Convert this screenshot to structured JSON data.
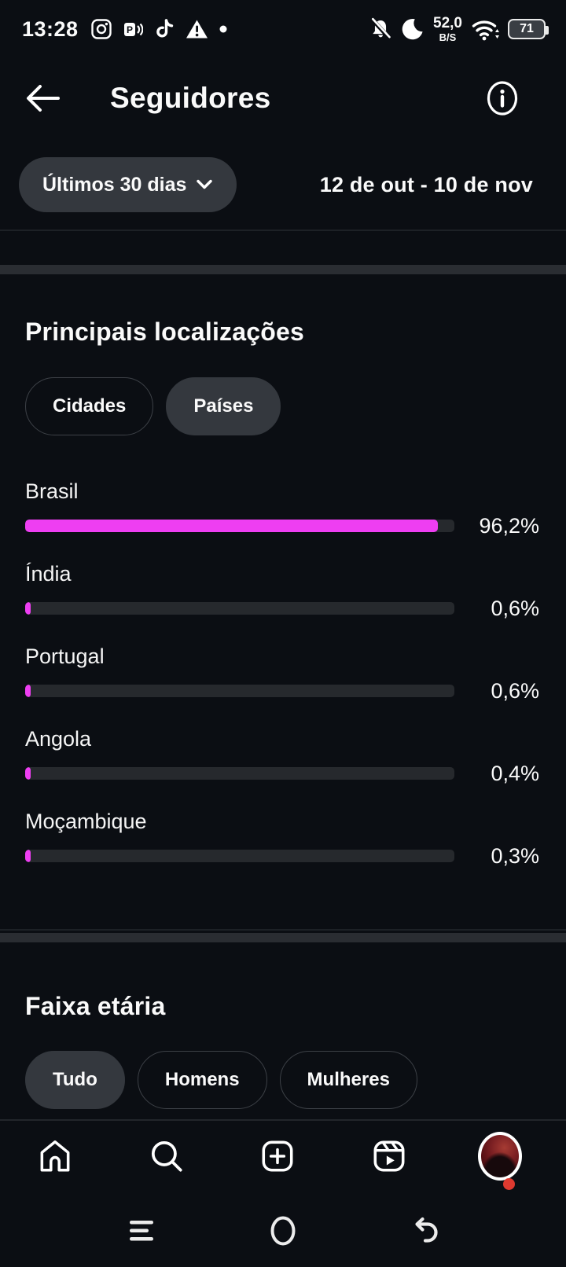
{
  "status_bar": {
    "time": "13:28",
    "left_icons": [
      "instagram",
      "media-p",
      "tiktok",
      "warning",
      "dot"
    ],
    "network_speed_value": "52,0",
    "network_speed_unit": "B/S",
    "battery_percent": "71",
    "right_icons": [
      "notifications-muted",
      "do-not-disturb-moon",
      "network-speed",
      "wifi",
      "battery"
    ]
  },
  "header": {
    "title": "Seguidores",
    "icons": [
      "back-arrow",
      "info"
    ]
  },
  "filter": {
    "period_button": "Últimos 30 dias",
    "date_range": "12 de out - 10 de nov"
  },
  "locations": {
    "title": "Principais localizações",
    "tabs": [
      {
        "label": "Cidades",
        "selected": false
      },
      {
        "label": "Países",
        "selected": true
      }
    ],
    "rows": [
      {
        "country": "Brasil",
        "percent": "96,2%",
        "value": 96.2
      },
      {
        "country": "Índia",
        "percent": "0,6%",
        "value": 0.6
      },
      {
        "country": "Portugal",
        "percent": "0,6%",
        "value": 0.6
      },
      {
        "country": "Angola",
        "percent": "0,4%",
        "value": 0.4
      },
      {
        "country": "Moçambique",
        "percent": "0,3%",
        "value": 0.3
      }
    ]
  },
  "age": {
    "title": "Faixa etária",
    "tabs": [
      {
        "label": "Tudo",
        "selected": true
      },
      {
        "label": "Homens",
        "selected": false
      },
      {
        "label": "Mulheres",
        "selected": false
      }
    ]
  },
  "bottom_nav": [
    "home",
    "search",
    "create",
    "reels",
    "profile"
  ],
  "android_nav": [
    "menu",
    "home",
    "back"
  ],
  "colors": {
    "accent_pink": "#ee3ef2",
    "bar_track": "#26292d",
    "pill_selected": "#34383e",
    "notification_red": "#de3a30",
    "background": "#0b0e13"
  }
}
